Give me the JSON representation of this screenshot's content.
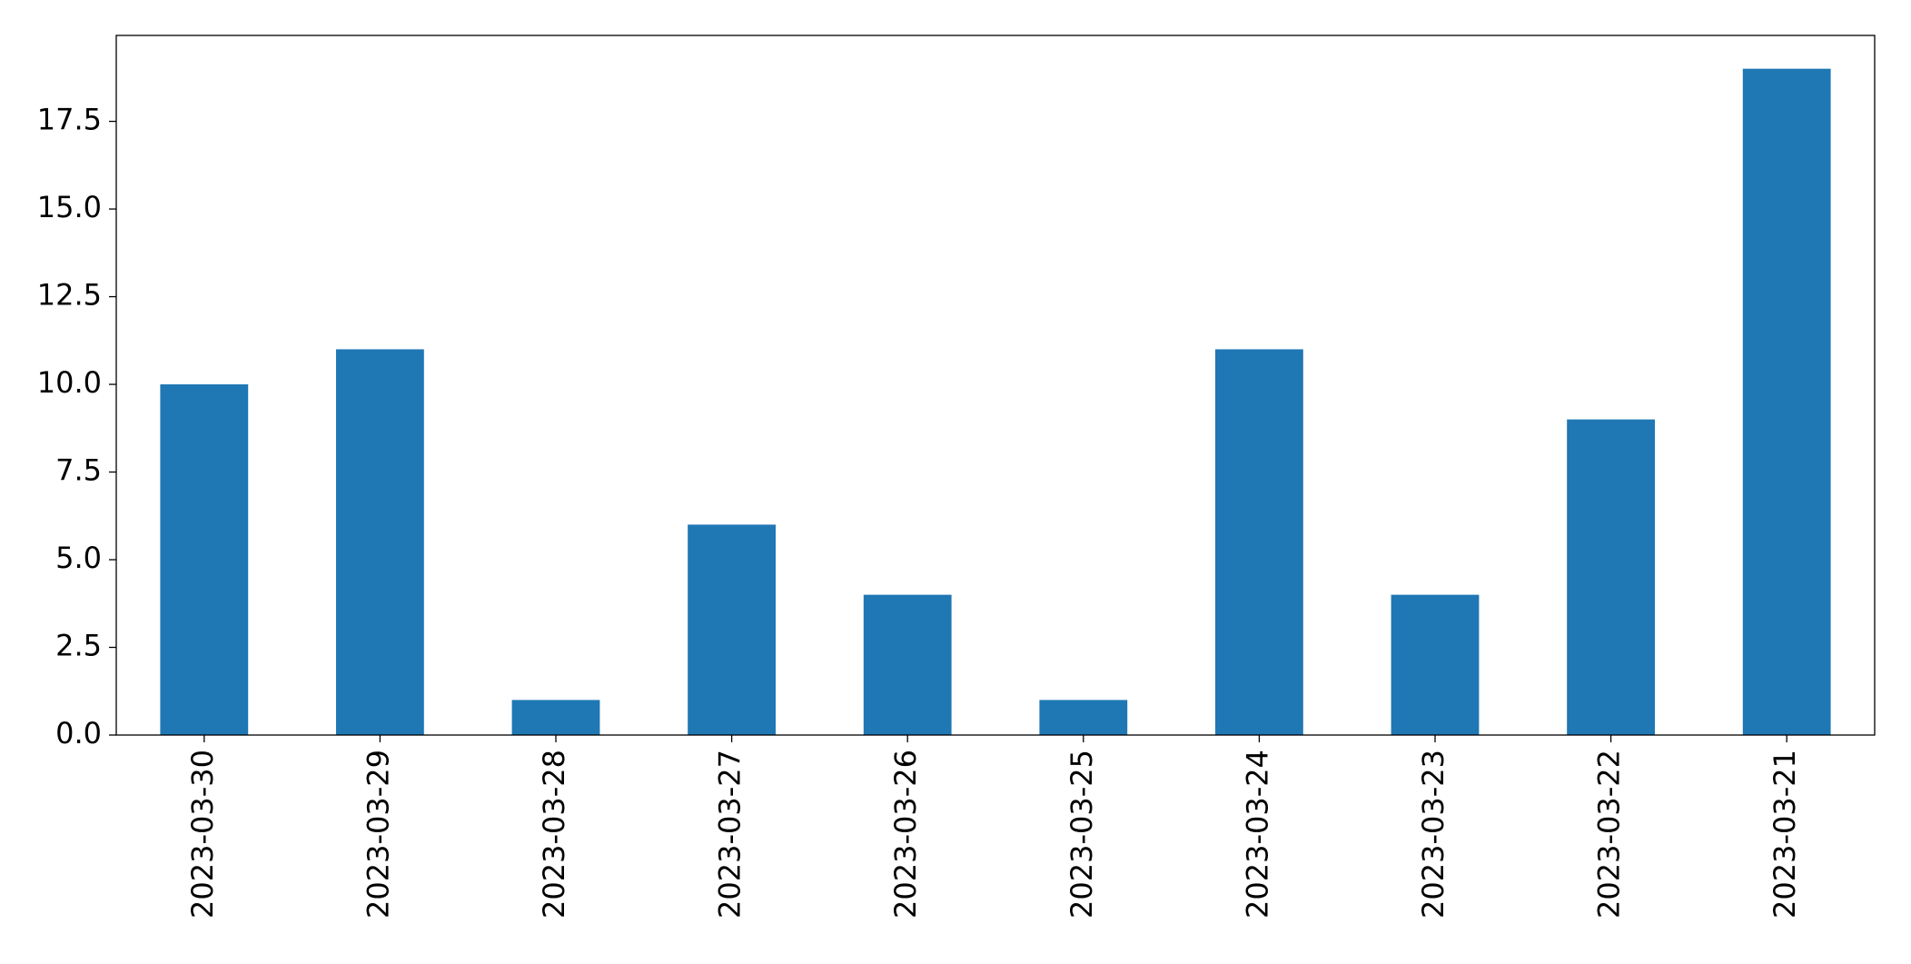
{
  "chart_data": {
    "type": "bar",
    "categories": [
      "2023-03-30",
      "2023-03-29",
      "2023-03-28",
      "2023-03-27",
      "2023-03-26",
      "2023-03-25",
      "2023-03-24",
      "2023-03-23",
      "2023-03-22",
      "2023-03-21"
    ],
    "values": [
      10,
      11,
      1,
      6,
      4,
      1,
      11,
      4,
      9,
      19
    ],
    "color": "#1f77b4",
    "ylim": [
      0,
      19.95
    ],
    "yticks": [
      {
        "value": 0,
        "label": "0.0"
      },
      2.5,
      {
        "value": 5,
        "label": "5.0"
      },
      7.5,
      {
        "value": 10,
        "label": "10.0"
      },
      12.5,
      {
        "value": 15,
        "label": "15.0"
      },
      17.5
    ],
    "grid": false
  }
}
